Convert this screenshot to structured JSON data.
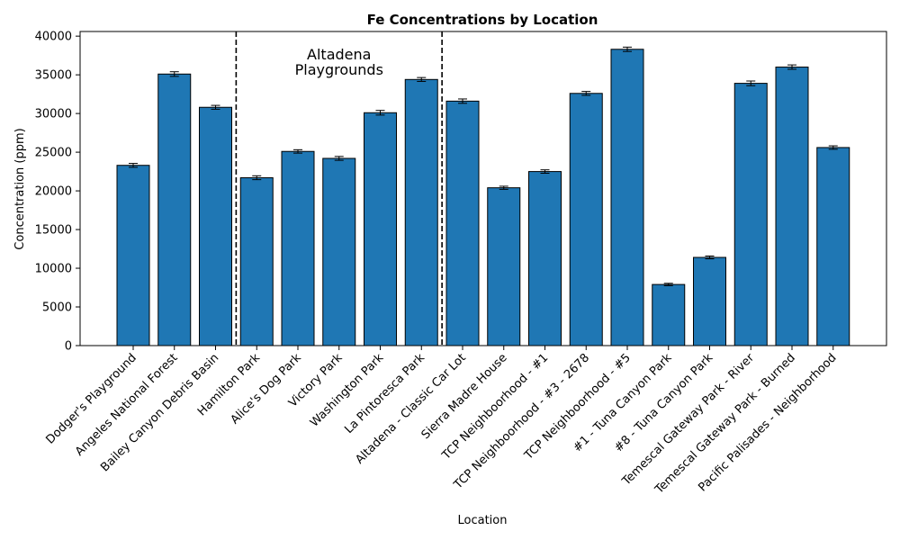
{
  "chart_data": {
    "type": "bar",
    "title": "Fe Concentrations by Location",
    "xlabel": "Location",
    "ylabel": "Concentration (ppm)",
    "ylim": [
      0,
      40600
    ],
    "yticks": [
      0,
      5000,
      10000,
      15000,
      20000,
      25000,
      30000,
      35000,
      40000
    ],
    "grid": false,
    "bar_color": "#1f77b4",
    "edge_color": "#000000",
    "categories": [
      "Dodger's Playground",
      "Angeles National Forest",
      "Bailey Canyon Debris Basin",
      "Hamilton Park",
      "Alice's Dog Park",
      "Victory Park",
      "Washington Park",
      "La Pintoresca Park",
      "Altadena - Classic Car Lot",
      "Sierra Madre House",
      "TCP Neighboorhood - #1",
      "TCP Neighboorhood - #3 - 2678",
      "TCP Neighboorhood - #5",
      "#1 - Tuna Canyon Park",
      "#8 - Tuna Canyon Park",
      "Temescal Gateway Park - River",
      "Temescal Gateway Park - Burned",
      "Pacific Palisades - Neighborhood"
    ],
    "values": [
      23300,
      35100,
      30800,
      21700,
      25100,
      24200,
      30100,
      34400,
      31600,
      20400,
      22500,
      32600,
      38300,
      7900,
      11400,
      33900,
      36000,
      25600
    ],
    "errors": [
      250,
      300,
      250,
      250,
      220,
      250,
      300,
      250,
      280,
      200,
      220,
      250,
      280,
      150,
      180,
      300,
      280,
      220
    ],
    "annotations": [
      {
        "text_lines": [
          "Altadena",
          "Playgrounds"
        ],
        "from_index": 3,
        "to_index": 7
      }
    ],
    "dividers_after_index": [
      2,
      7
    ]
  }
}
